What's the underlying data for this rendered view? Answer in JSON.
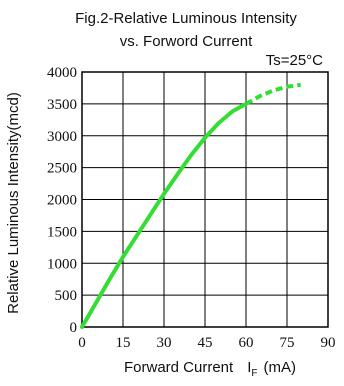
{
  "chart_data": {
    "type": "line",
    "title_line1": "Fig.2-Relative Luminous Intensity",
    "title_line2": "vs. Forword Current",
    "condition": "Ts=25°C",
    "xlabel": "Forward Current",
    "xlabel_symbol": "I",
    "xlabel_subscript": "F",
    "xlabel_unit": "(mA)",
    "ylabel": "Relative Luminous Intensity(mcd)",
    "xlim": [
      0,
      90
    ],
    "ylim": [
      0,
      4000
    ],
    "x_ticks": [
      "0",
      "15",
      "30",
      "45",
      "60",
      "75",
      "90"
    ],
    "y_ticks": [
      "0",
      "500",
      "1000",
      "1500",
      "2000",
      "2500",
      "3000",
      "3500",
      "4000"
    ],
    "grid": true,
    "series": [
      {
        "color": "#33dd33",
        "solid": {
          "x": [
            0,
            5,
            10,
            15,
            20,
            25,
            30,
            35,
            40,
            45,
            50,
            55,
            60
          ],
          "y": [
            0,
            370,
            740,
            1100,
            1430,
            1760,
            2090,
            2400,
            2700,
            2970,
            3200,
            3380,
            3500
          ]
        },
        "dashed": {
          "x": [
            60,
            65,
            70,
            75,
            80
          ],
          "y": [
            3500,
            3620,
            3710,
            3770,
            3800
          ]
        }
      }
    ]
  }
}
